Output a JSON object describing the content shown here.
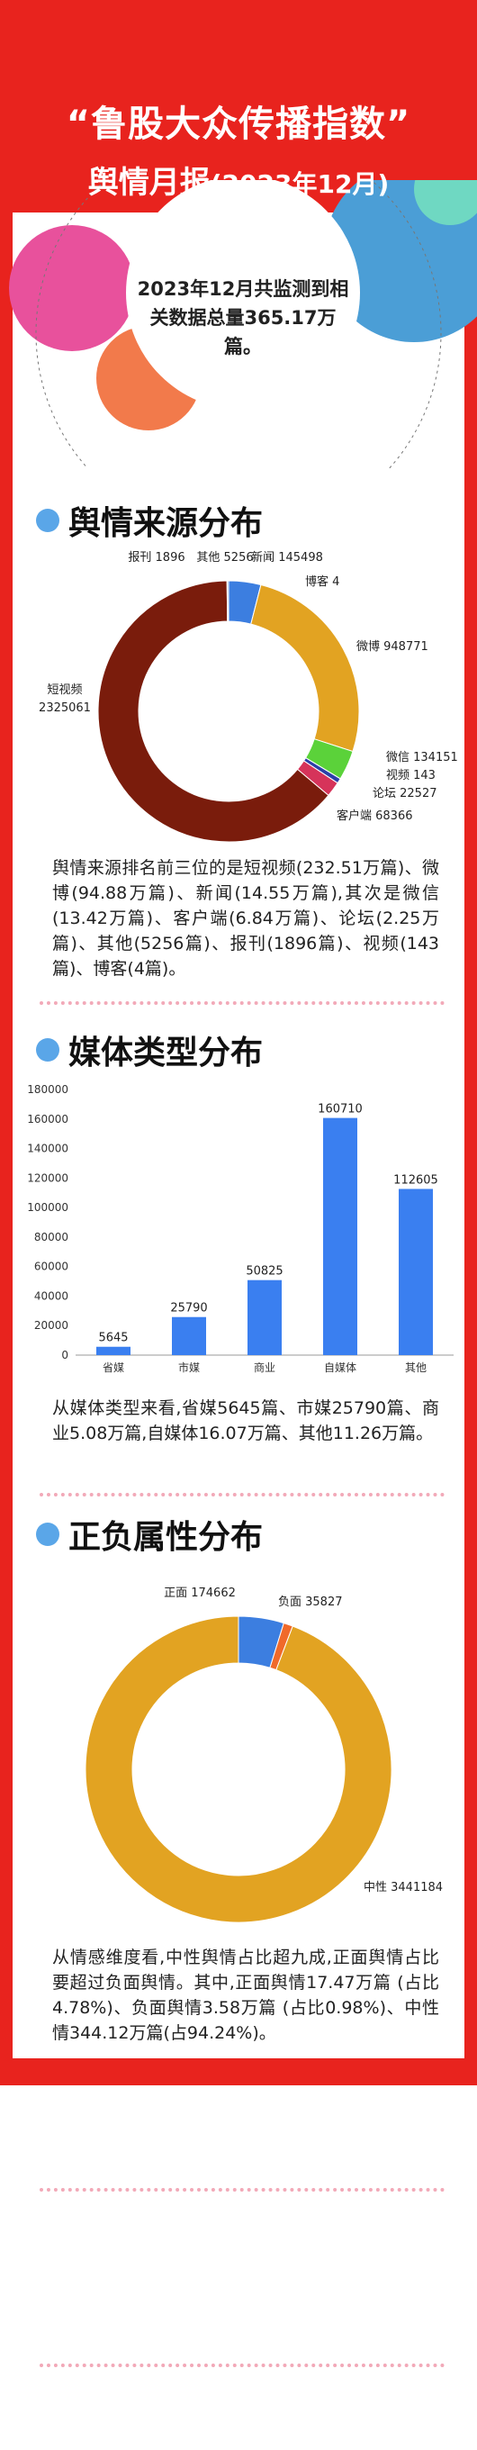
{
  "header": {
    "title_line1": "“鲁股大众传播指数”",
    "title_line2_main": "舆情月报",
    "title_line2_sub": "(2023年12月)"
  },
  "summary": {
    "text": "2023年12月共监测到相关数据总量365.17万篇。"
  },
  "colors": {
    "frame_red": "#e8231e",
    "dot_blue": "#5aa6e8",
    "divider_pink": "#f2a9b8",
    "decor_pink": "#e8519c",
    "decor_blue": "#4b9ed6",
    "decor_orange": "#f27a4b",
    "decor_teal": "#6fd8c2"
  },
  "sections": {
    "source": {
      "title": "舆情来源分布",
      "paragraph": "舆情来源排名前三位的是短视频(232.51万篇)、微博(94.88万篇)、新闻(14.55万篇),其次是微信(13.42万篇)、客户端(6.84万篇)、论坛(2.25万篇)、其他(5256篇)、报刊(1896篇)、视频(143篇)、博客(4篇)。"
    },
    "media": {
      "title": "媒体类型分布",
      "paragraph": "从媒体类型来看,省媒5645篇、市媒25790篇、商业5.08万篇,自媒体16.07万篇、其他11.26万篇。"
    },
    "sentiment": {
      "title": "正负属性分布",
      "paragraph": "从情感维度看,中性舆情占比超九成,正面舆情占比要超过负面舆情。其中,正面舆情17.47万篇 (占比4.78%)、负面舆情3.58万篇 (占比0.98%)、中性情344.12万篇(占94.24%)。"
    }
  },
  "chart_data": [
    {
      "type": "pie",
      "variant": "donut",
      "title": "",
      "slices": [
        {
          "name": "新闻",
          "value": 145498,
          "color": "#3c7ee0"
        },
        {
          "name": "博客",
          "value": 4,
          "color": "#3c7ee0"
        },
        {
          "name": "微博",
          "value": 948771,
          "color": "#e2a322"
        },
        {
          "name": "微信",
          "value": 134151,
          "color": "#5bd23a"
        },
        {
          "name": "视频",
          "value": 143,
          "color": "#7a2fb6"
        },
        {
          "name": "论坛",
          "value": 22527,
          "color": "#2b3fa8"
        },
        {
          "name": "客户端",
          "value": 68366,
          "color": "#d6335a"
        },
        {
          "name": "短视频",
          "value": 2325061,
          "color": "#7a1c0c"
        },
        {
          "name": "报刊",
          "value": 1896,
          "color": "#6b6b6b"
        },
        {
          "name": "其他",
          "value": 5256,
          "color": "#2a6fd6"
        }
      ],
      "labels": [
        {
          "text": "报刊 1896"
        },
        {
          "text": "其他 5256"
        },
        {
          "text": "新闻 145498"
        },
        {
          "text": "博客 4"
        },
        {
          "text": "微博 948771"
        },
        {
          "text": "微信 134151"
        },
        {
          "text": "视频 143"
        },
        {
          "text": "论坛 22527"
        },
        {
          "text": "客户端 68366"
        },
        {
          "text": "短视频"
        },
        {
          "text": "2325061"
        }
      ]
    },
    {
      "type": "bar",
      "title": "",
      "categories": [
        "省媒",
        "市媒",
        "商业",
        "自媒体",
        "其他"
      ],
      "values": [
        5645,
        25790,
        50825,
        160710,
        112605
      ],
      "ylim": [
        0,
        180000
      ],
      "yticks": [
        "0",
        "20000",
        "40000",
        "60000",
        "80000",
        "100000",
        "120000",
        "140000",
        "160000",
        "180000"
      ],
      "bar_color": "#3a7ff0",
      "grid": false,
      "xlabel": "",
      "ylabel": ""
    },
    {
      "type": "pie",
      "variant": "donut",
      "title": "",
      "slices": [
        {
          "name": "正面",
          "value": 174662,
          "color": "#3c7ee0"
        },
        {
          "name": "负面",
          "value": 35827,
          "color": "#f06a2a"
        },
        {
          "name": "中性",
          "value": 3441184,
          "color": "#e2a322"
        }
      ],
      "labels": [
        {
          "text": "正面 174662"
        },
        {
          "text": "负面 35827"
        },
        {
          "text": "中性 3441184"
        }
      ]
    }
  ]
}
